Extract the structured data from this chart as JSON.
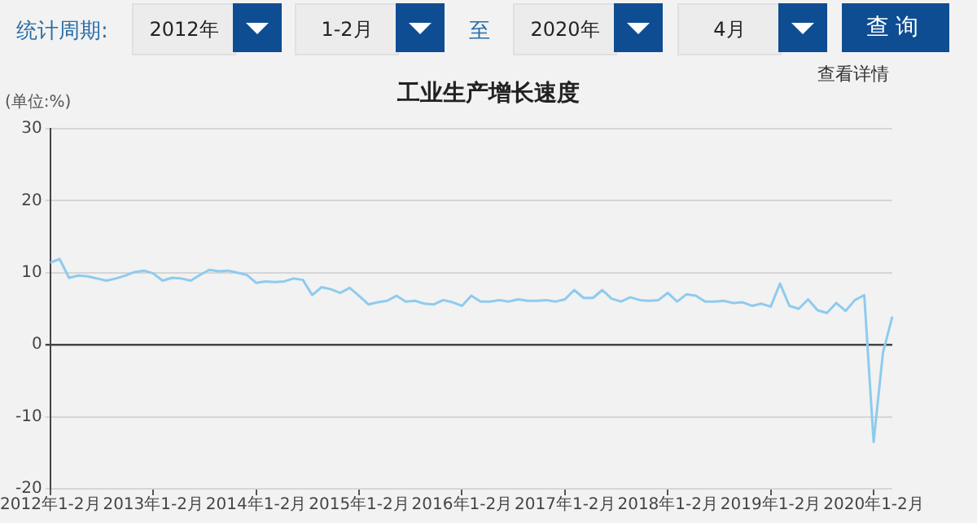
{
  "chart_data": {
    "type": "line",
    "title": "工业生产增长速度",
    "ylabel": "(单位:%)",
    "annotations": [
      "统计周期:",
      "2012年",
      "1-2月",
      "至",
      "2020年",
      "4月",
      "查询",
      "查看详情"
    ],
    "categories": [
      "2012年1-2月",
      null,
      null,
      null,
      null,
      null,
      null,
      null,
      null,
      null,
      null,
      "2013年1-2月",
      null,
      null,
      null,
      null,
      null,
      null,
      null,
      null,
      null,
      null,
      "2014年1-2月",
      null,
      null,
      null,
      null,
      null,
      null,
      null,
      null,
      null,
      null,
      "2015年1-2月",
      null,
      null,
      null,
      null,
      null,
      null,
      null,
      null,
      null,
      null,
      "2016年1-2月",
      null,
      null,
      null,
      null,
      null,
      null,
      null,
      null,
      null,
      null,
      "2017年1-2月",
      null,
      null,
      null,
      null,
      null,
      null,
      null,
      null,
      null,
      null,
      "2018年1-2月",
      null,
      null,
      null,
      null,
      null,
      null,
      null,
      null,
      null,
      null,
      "2019年1-2月",
      null,
      null,
      null,
      null,
      null,
      null,
      null,
      null,
      null,
      null,
      "2020年1-2月",
      null,
      null
    ],
    "series": [
      {
        "color": "#8ecbee",
        "values": [
          11.4,
          11.9,
          9.3,
          9.6,
          9.5,
          9.2,
          8.9,
          9.2,
          9.6,
          10.1,
          10.3,
          9.9,
          8.9,
          9.3,
          9.2,
          8.9,
          9.7,
          10.4,
          10.2,
          10.3,
          10.0,
          9.7,
          8.6,
          8.8,
          8.7,
          8.8,
          9.2,
          9.0,
          6.9,
          8.0,
          7.7,
          7.2,
          7.9,
          6.8,
          5.6,
          5.9,
          6.1,
          6.8,
          6.0,
          6.1,
          5.7,
          5.6,
          6.2,
          5.9,
          5.4,
          6.8,
          6.0,
          6.0,
          6.2,
          6.0,
          6.3,
          6.1,
          6.1,
          6.2,
          6.0,
          6.3,
          7.6,
          6.5,
          6.5,
          7.6,
          6.4,
          6.0,
          6.6,
          6.2,
          6.1,
          6.2,
          7.2,
          6.0,
          7.0,
          6.8,
          6.0,
          6.0,
          6.1,
          5.8,
          5.9,
          5.4,
          5.7,
          5.3,
          8.5,
          5.4,
          5.0,
          6.3,
          4.8,
          4.4,
          5.8,
          4.7,
          6.2,
          6.9,
          -13.5,
          -1.1,
          3.9
        ]
      }
    ],
    "ylim": [
      -20,
      30
    ],
    "yticks": [
      -20,
      -10,
      0,
      10,
      20,
      30
    ],
    "grid": "y",
    "legend": false,
    "marker": "none",
    "line_style": "solid"
  }
}
